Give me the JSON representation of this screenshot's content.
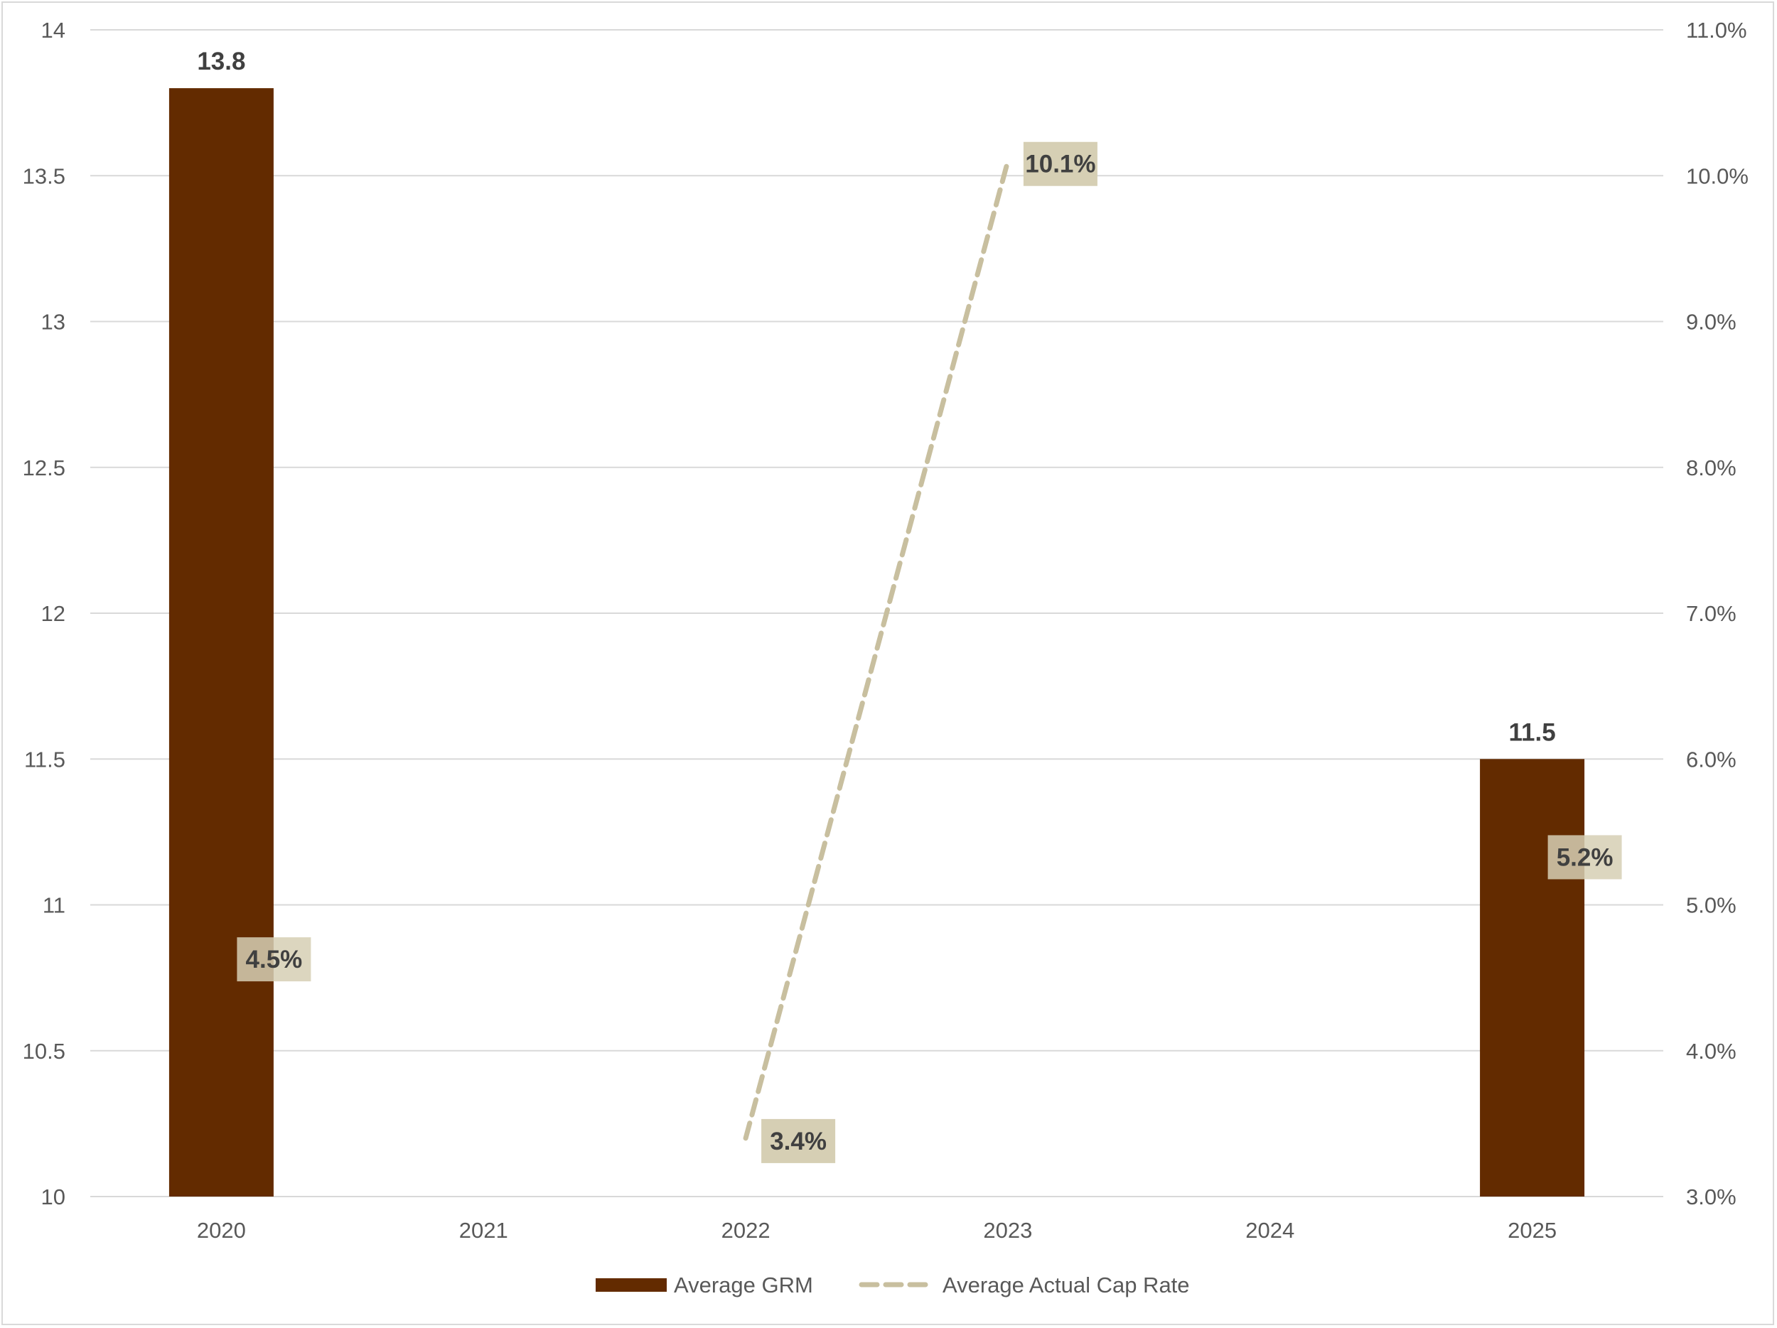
{
  "chart_data": {
    "type": "bar",
    "categories": [
      "2020",
      "2021",
      "2022",
      "2023",
      "2024",
      "2025"
    ],
    "series": [
      {
        "name": "Average GRM",
        "type": "bar",
        "axis": "left",
        "color": "#632b00",
        "values": [
          13.8,
          null,
          null,
          null,
          null,
          11.5
        ],
        "labels": [
          "13.8",
          null,
          null,
          null,
          null,
          "11.5"
        ]
      },
      {
        "name": "Average Actual Cap Rate",
        "type": "line",
        "style": "dashed",
        "axis": "right",
        "color": "#c8bf9f",
        "values": [
          4.5,
          null,
          3.4,
          10.1,
          null,
          5.2
        ],
        "labels": [
          "4.5%",
          null,
          "3.4%",
          "10.1%",
          null,
          "5.2%"
        ]
      }
    ],
    "y_left": {
      "min": 10,
      "max": 14,
      "ticks": [
        "10",
        "10.5",
        "11",
        "11.5",
        "12",
        "12.5",
        "13",
        "13.5",
        "14"
      ]
    },
    "y_right": {
      "min": 3,
      "max": 11,
      "ticks": [
        "3.0%",
        "4.0%",
        "5.0%",
        "6.0%",
        "7.0%",
        "8.0%",
        "9.0%",
        "10.0%",
        "11.0%"
      ]
    },
    "grid": true,
    "legend_position": "bottom",
    "label_box_color": "#d6cfb4"
  }
}
